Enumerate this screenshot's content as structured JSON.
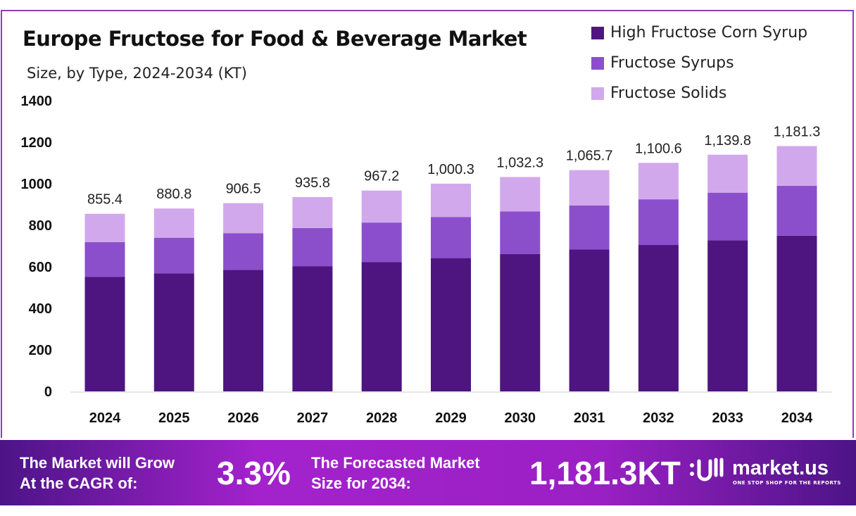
{
  "chart_data": {
    "type": "bar",
    "stacked": true,
    "title": "Europe Fructose for Food & Beverage Market",
    "subtitle": "Size, by Type, 2024-2034 (KT)",
    "categories": [
      "2024",
      "2025",
      "2026",
      "2027",
      "2028",
      "2029",
      "2030",
      "2031",
      "2032",
      "2033",
      "2034"
    ],
    "series": [
      {
        "name": "High Fructose Corn Syrup",
        "color": "#4e1580",
        "values": [
          552,
          568,
          585,
          603,
          622,
          642,
          662,
          683,
          705,
          728,
          750
        ]
      },
      {
        "name": "Fructose Syrups",
        "color": "#8c4fcc",
        "values": [
          167,
          172,
          177,
          184,
          191,
          198,
          205,
          212,
          220,
          229,
          240
        ]
      },
      {
        "name": "Fructose Solids",
        "color": "#d2a8ec",
        "values": [
          136.4,
          140.8,
          144.5,
          148.8,
          154.2,
          160.3,
          165.3,
          170.7,
          175.6,
          182.8,
          191.3
        ]
      }
    ],
    "totals_labels": [
      "855.4",
      "880.8",
      "906.5",
      "935.8",
      "967.2",
      "1,000.3",
      "1,032.3",
      "1,065.7",
      "1,100.6",
      "1,139.8",
      "1,181.3"
    ],
    "totals": [
      855.4,
      880.8,
      906.5,
      935.8,
      967.2,
      1000.3,
      1032.3,
      1065.7,
      1100.6,
      1139.8,
      1181.3
    ],
    "ylim": [
      0,
      1400
    ],
    "yticks": [
      "0",
      "200",
      "400",
      "600",
      "800",
      "1000",
      "1200",
      "1400"
    ],
    "grid": false,
    "legend_position": "top-right"
  },
  "footer": {
    "cagr_line1": "The Market will Grow",
    "cagr_line2": "At the CAGR of:",
    "cagr_value": "3.3%",
    "forecast_line1": "The Forecasted Market",
    "forecast_line2": "Size for 2034:",
    "forecast_value": "1,181.3KT",
    "brand": "market.us",
    "tagline": "ONE STOP SHOP FOR THE REPORTS"
  }
}
